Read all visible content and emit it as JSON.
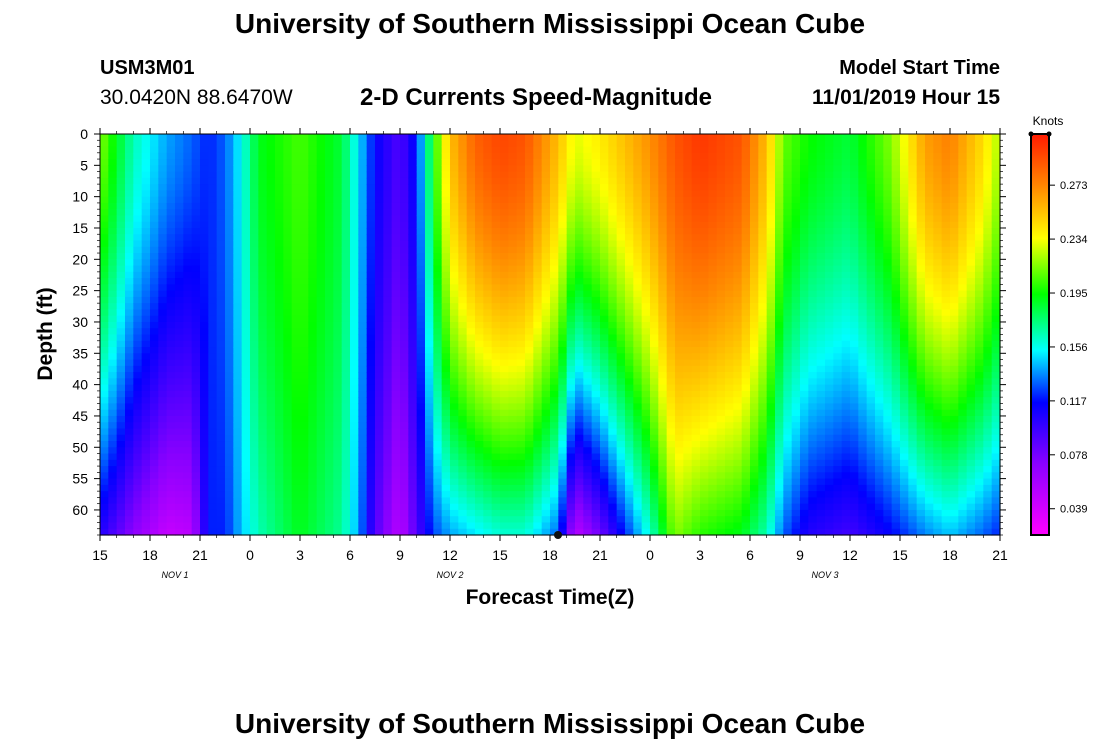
{
  "header": {
    "title": "University of Southern Mississippi Ocean Cube",
    "station_id": "USM3M01",
    "coordinates": "30.0420N 88.6470W",
    "model_start_label": "Model Start Time",
    "model_start_value": "11/01/2019 Hour 15"
  },
  "footer": {
    "title": "University of Southern Mississippi Ocean Cube"
  },
  "chart_data": {
    "type": "heatmap",
    "title": "2-D Currents Speed-Magnitude",
    "xlabel": "Forecast Time(Z)",
    "ylabel": "Depth (ft)",
    "x_ticks": [
      "15",
      "18",
      "21",
      "0",
      "3",
      "6",
      "9",
      "12",
      "15",
      "18",
      "21",
      "0",
      "3",
      "6",
      "9",
      "12",
      "15",
      "18",
      "21"
    ],
    "x_hours_from_start": [
      0,
      3,
      6,
      9,
      12,
      15,
      18,
      21,
      24,
      27,
      30,
      33,
      36,
      39,
      42,
      45,
      48,
      51,
      54
    ],
    "date_labels": [
      {
        "text": "NOV 1",
        "hour": 4.5
      },
      {
        "text": "NOV 2",
        "hour": 21
      },
      {
        "text": "NOV 3",
        "hour": 43.5
      }
    ],
    "xlim": [
      0,
      54
    ],
    "y_ticks": [
      0,
      5,
      10,
      15,
      20,
      25,
      30,
      35,
      40,
      45,
      50,
      55,
      60
    ],
    "ylim": [
      0,
      64
    ],
    "colorbar": {
      "unit": "Knots",
      "ticks": [
        0.039,
        0.078,
        0.117,
        0.156,
        0.195,
        0.234,
        0.273
      ],
      "range": [
        0.02,
        0.31
      ]
    },
    "columns": [
      {
        "hour": 0,
        "top": 0.215,
        "bottom": 0.105
      },
      {
        "hour": 2,
        "top": 0.165,
        "bottom": 0.07
      },
      {
        "hour": 4,
        "top": 0.14,
        "bottom": 0.045
      },
      {
        "hour": 5.5,
        "top": 0.13,
        "bottom": 0.05
      },
      {
        "hour": 6.5,
        "top": 0.12,
        "bottom": 0.12
      },
      {
        "hour": 7.5,
        "top": 0.13,
        "bottom": 0.12
      },
      {
        "hour": 8.5,
        "top": 0.155,
        "bottom": 0.145
      },
      {
        "hour": 9.5,
        "top": 0.19,
        "bottom": 0.165
      },
      {
        "hour": 12,
        "top": 0.205,
        "bottom": 0.19
      },
      {
        "hour": 14.5,
        "top": 0.185,
        "bottom": 0.17
      },
      {
        "hour": 15.5,
        "top": 0.15,
        "bottom": 0.14
      },
      {
        "hour": 16.5,
        "top": 0.115,
        "bottom": 0.09
      },
      {
        "hour": 18,
        "top": 0.09,
        "bottom": 0.05
      },
      {
        "hour": 19,
        "top": 0.12,
        "bottom": 0.09
      },
      {
        "hour": 20,
        "top": 0.195,
        "bottom": 0.125
      },
      {
        "hour": 21,
        "top": 0.255,
        "bottom": 0.14
      },
      {
        "hour": 22.5,
        "top": 0.285,
        "bottom": 0.15
      },
      {
        "hour": 24,
        "top": 0.295,
        "bottom": 0.16
      },
      {
        "hour": 25.5,
        "top": 0.29,
        "bottom": 0.16
      },
      {
        "hour": 27.5,
        "top": 0.255,
        "bottom": 0.13
      },
      {
        "hour": 28.5,
        "top": 0.23,
        "bottom": 0.05
      },
      {
        "hour": 30,
        "top": 0.24,
        "bottom": 0.08
      },
      {
        "hour": 31.5,
        "top": 0.255,
        "bottom": 0.12
      },
      {
        "hour": 33,
        "top": 0.27,
        "bottom": 0.16
      },
      {
        "hour": 34.5,
        "top": 0.29,
        "bottom": 0.215
      },
      {
        "hour": 36,
        "top": 0.3,
        "bottom": 0.2
      },
      {
        "hour": 38.5,
        "top": 0.29,
        "bottom": 0.19
      },
      {
        "hour": 40,
        "top": 0.255,
        "bottom": 0.165
      },
      {
        "hour": 41,
        "top": 0.21,
        "bottom": 0.13
      },
      {
        "hour": 42.5,
        "top": 0.195,
        "bottom": 0.105
      },
      {
        "hour": 45,
        "top": 0.185,
        "bottom": 0.095
      },
      {
        "hour": 47.5,
        "top": 0.215,
        "bottom": 0.115
      },
      {
        "hour": 49.5,
        "top": 0.265,
        "bottom": 0.135
      },
      {
        "hour": 51,
        "top": 0.275,
        "bottom": 0.145
      },
      {
        "hour": 53,
        "top": 0.245,
        "bottom": 0.13
      },
      {
        "hour": 54,
        "top": 0.22,
        "bottom": 0.12
      }
    ]
  }
}
